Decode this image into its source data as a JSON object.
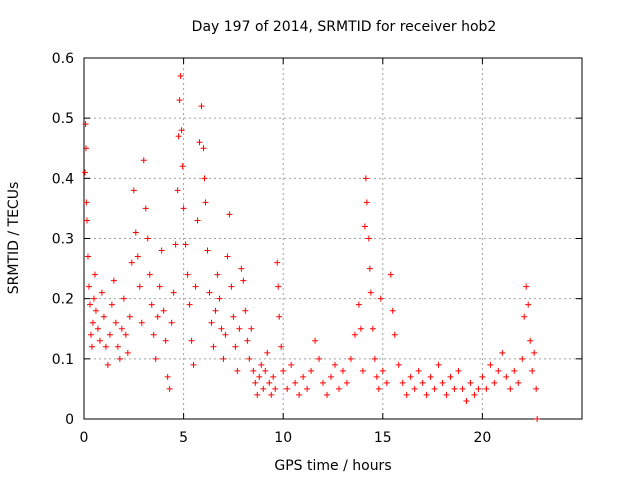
{
  "chart_data": {
    "type": "scatter",
    "title": "Day 197 of 2014, SRMTID for receiver hob2",
    "xlabel": "GPS time / hours",
    "ylabel": "SRMTID / TECUs",
    "xlim": [
      0,
      25
    ],
    "ylim": [
      0,
      0.6
    ],
    "x_ticks": [
      0,
      5,
      10,
      15,
      20
    ],
    "y_ticks": [
      0,
      0.1,
      0.2,
      0.3,
      0.4,
      0.5,
      0.6
    ],
    "x_tick_labels": [
      "0",
      "5",
      "10",
      "15",
      "20"
    ],
    "y_tick_labels": [
      "0",
      "0.1",
      "0.2",
      "0.3",
      "0.4",
      "0.5",
      "0.6"
    ],
    "grid": true,
    "marker": "plus",
    "color": "#ff0000",
    "series": [
      {
        "name": "SRMTID",
        "points": [
          [
            0.05,
            0.41
          ],
          [
            0.08,
            0.49
          ],
          [
            0.1,
            0.45
          ],
          [
            0.12,
            0.36
          ],
          [
            0.15,
            0.33
          ],
          [
            0.2,
            0.27
          ],
          [
            0.25,
            0.22
          ],
          [
            0.3,
            0.19
          ],
          [
            0.35,
            0.14
          ],
          [
            0.4,
            0.12
          ],
          [
            0.45,
            0.16
          ],
          [
            0.5,
            0.2
          ],
          [
            0.55,
            0.24
          ],
          [
            0.6,
            0.18
          ],
          [
            0.7,
            0.15
          ],
          [
            0.8,
            0.13
          ],
          [
            0.9,
            0.21
          ],
          [
            1.0,
            0.17
          ],
          [
            1.1,
            0.12
          ],
          [
            1.2,
            0.09
          ],
          [
            1.3,
            0.14
          ],
          [
            1.4,
            0.19
          ],
          [
            1.5,
            0.23
          ],
          [
            1.6,
            0.16
          ],
          [
            1.7,
            0.12
          ],
          [
            1.8,
            0.1
          ],
          [
            1.9,
            0.15
          ],
          [
            2.0,
            0.2
          ],
          [
            2.1,
            0.14
          ],
          [
            2.2,
            0.11
          ],
          [
            2.3,
            0.17
          ],
          [
            2.4,
            0.26
          ],
          [
            2.5,
            0.38
          ],
          [
            2.6,
            0.31
          ],
          [
            2.7,
            0.27
          ],
          [
            2.8,
            0.22
          ],
          [
            2.9,
            0.16
          ],
          [
            3.0,
            0.43
          ],
          [
            3.1,
            0.35
          ],
          [
            3.2,
            0.3
          ],
          [
            3.3,
            0.24
          ],
          [
            3.4,
            0.19
          ],
          [
            3.5,
            0.14
          ],
          [
            3.6,
            0.1
          ],
          [
            3.7,
            0.17
          ],
          [
            3.8,
            0.22
          ],
          [
            3.9,
            0.28
          ],
          [
            4.0,
            0.18
          ],
          [
            4.1,
            0.13
          ],
          [
            4.2,
            0.07
          ],
          [
            4.3,
            0.05
          ],
          [
            4.4,
            0.16
          ],
          [
            4.5,
            0.21
          ],
          [
            4.6,
            0.29
          ],
          [
            4.7,
            0.38
          ],
          [
            4.75,
            0.47
          ],
          [
            4.8,
            0.53
          ],
          [
            4.85,
            0.57
          ],
          [
            4.9,
            0.48
          ],
          [
            4.95,
            0.42
          ],
          [
            5.0,
            0.35
          ],
          [
            5.1,
            0.29
          ],
          [
            5.2,
            0.24
          ],
          [
            5.3,
            0.19
          ],
          [
            5.4,
            0.13
          ],
          [
            5.5,
            0.09
          ],
          [
            5.6,
            0.22
          ],
          [
            5.7,
            0.33
          ],
          [
            5.8,
            0.46
          ],
          [
            5.9,
            0.52
          ],
          [
            6.0,
            0.45
          ],
          [
            6.05,
            0.4
          ],
          [
            6.1,
            0.36
          ],
          [
            6.2,
            0.28
          ],
          [
            6.3,
            0.21
          ],
          [
            6.4,
            0.16
          ],
          [
            6.5,
            0.12
          ],
          [
            6.6,
            0.18
          ],
          [
            6.7,
            0.24
          ],
          [
            6.8,
            0.2
          ],
          [
            6.9,
            0.15
          ],
          [
            7.0,
            0.1
          ],
          [
            7.1,
            0.14
          ],
          [
            7.2,
            0.27
          ],
          [
            7.3,
            0.34
          ],
          [
            7.4,
            0.22
          ],
          [
            7.5,
            0.17
          ],
          [
            7.6,
            0.12
          ],
          [
            7.7,
            0.08
          ],
          [
            7.8,
            0.15
          ],
          [
            7.9,
            0.25
          ],
          [
            8.0,
            0.23
          ],
          [
            8.1,
            0.18
          ],
          [
            8.2,
            0.13
          ],
          [
            8.3,
            0.1
          ],
          [
            8.4,
            0.15
          ],
          [
            8.5,
            0.08
          ],
          [
            8.6,
            0.06
          ],
          [
            8.7,
            0.04
          ],
          [
            8.8,
            0.07
          ],
          [
            8.9,
            0.09
          ],
          [
            9.0,
            0.05
          ],
          [
            9.1,
            0.08
          ],
          [
            9.2,
            0.11
          ],
          [
            9.3,
            0.06
          ],
          [
            9.4,
            0.04
          ],
          [
            9.5,
            0.07
          ],
          [
            9.6,
            0.05
          ],
          [
            9.7,
            0.26
          ],
          [
            9.75,
            0.22
          ],
          [
            9.8,
            0.17
          ],
          [
            9.9,
            0.12
          ],
          [
            10.0,
            0.08
          ],
          [
            10.2,
            0.05
          ],
          [
            10.4,
            0.09
          ],
          [
            10.6,
            0.06
          ],
          [
            10.8,
            0.04
          ],
          [
            11.0,
            0.07
          ],
          [
            11.2,
            0.05
          ],
          [
            11.4,
            0.08
          ],
          [
            11.6,
            0.13
          ],
          [
            11.8,
            0.1
          ],
          [
            12.0,
            0.06
          ],
          [
            12.2,
            0.04
          ],
          [
            12.4,
            0.07
          ],
          [
            12.6,
            0.09
          ],
          [
            12.8,
            0.05
          ],
          [
            13.0,
            0.08
          ],
          [
            13.2,
            0.06
          ],
          [
            13.4,
            0.1
          ],
          [
            13.6,
            0.14
          ],
          [
            13.8,
            0.19
          ],
          [
            13.9,
            0.15
          ],
          [
            14.0,
            0.08
          ],
          [
            14.1,
            0.32
          ],
          [
            14.15,
            0.4
          ],
          [
            14.2,
            0.36
          ],
          [
            14.3,
            0.3
          ],
          [
            14.35,
            0.25
          ],
          [
            14.4,
            0.21
          ],
          [
            14.5,
            0.15
          ],
          [
            14.6,
            0.1
          ],
          [
            14.7,
            0.07
          ],
          [
            14.8,
            0.05
          ],
          [
            14.9,
            0.2
          ],
          [
            15.0,
            0.08
          ],
          [
            15.2,
            0.06
          ],
          [
            15.4,
            0.24
          ],
          [
            15.5,
            0.18
          ],
          [
            15.6,
            0.14
          ],
          [
            15.8,
            0.09
          ],
          [
            16.0,
            0.06
          ],
          [
            16.2,
            0.04
          ],
          [
            16.4,
            0.07
          ],
          [
            16.6,
            0.05
          ],
          [
            16.8,
            0.08
          ],
          [
            17.0,
            0.06
          ],
          [
            17.2,
            0.04
          ],
          [
            17.4,
            0.07
          ],
          [
            17.6,
            0.05
          ],
          [
            17.8,
            0.09
          ],
          [
            18.0,
            0.06
          ],
          [
            18.2,
            0.04
          ],
          [
            18.4,
            0.07
          ],
          [
            18.6,
            0.05
          ],
          [
            18.8,
            0.08
          ],
          [
            19.0,
            0.05
          ],
          [
            19.2,
            0.03
          ],
          [
            19.4,
            0.06
          ],
          [
            19.6,
            0.04
          ],
          [
            19.8,
            0.05
          ],
          [
            20.0,
            0.07
          ],
          [
            20.2,
            0.05
          ],
          [
            20.4,
            0.09
          ],
          [
            20.6,
            0.06
          ],
          [
            20.8,
            0.08
          ],
          [
            21.0,
            0.11
          ],
          [
            21.2,
            0.07
          ],
          [
            21.4,
            0.05
          ],
          [
            21.6,
            0.08
          ],
          [
            21.8,
            0.06
          ],
          [
            22.0,
            0.1
          ],
          [
            22.1,
            0.17
          ],
          [
            22.2,
            0.22
          ],
          [
            22.3,
            0.19
          ],
          [
            22.4,
            0.13
          ],
          [
            22.5,
            0.08
          ],
          [
            22.6,
            0.11
          ],
          [
            22.7,
            0.05
          ],
          [
            22.75,
            0.0
          ]
        ]
      }
    ]
  }
}
